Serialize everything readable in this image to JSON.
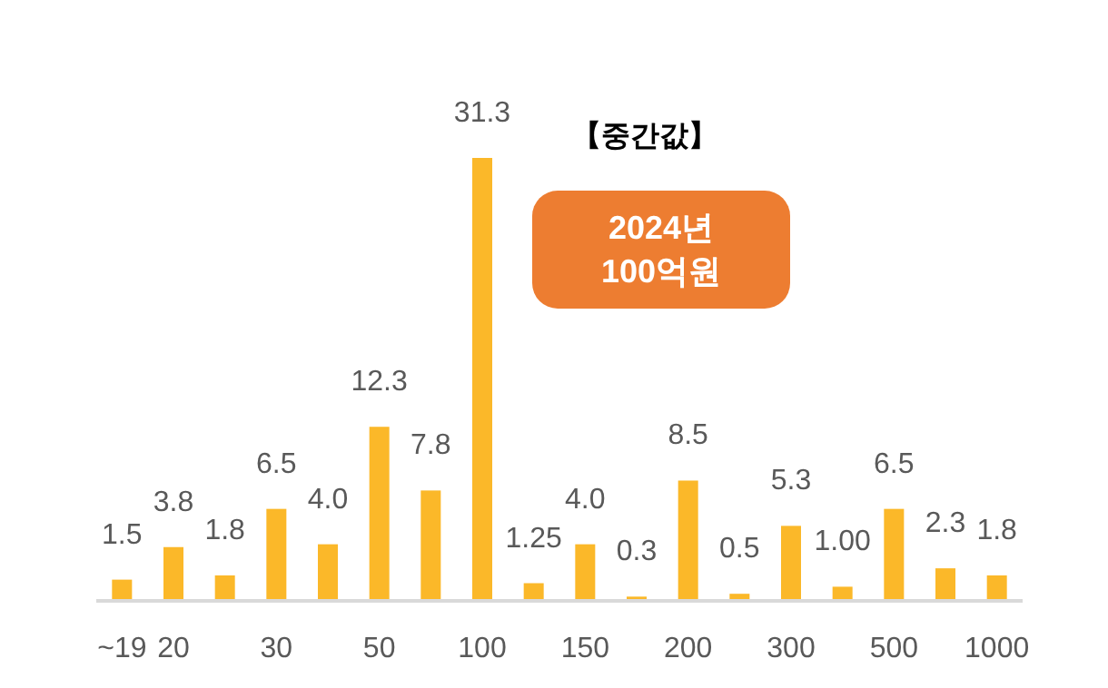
{
  "chart_data": {
    "type": "bar",
    "categories": [
      "~19",
      "20",
      null,
      "30",
      null,
      "50",
      null,
      "100",
      null,
      "150",
      null,
      "200",
      null,
      "300",
      null,
      "500",
      null,
      "1000"
    ],
    "values": [
      1.5,
      3.8,
      1.8,
      6.5,
      4.0,
      12.3,
      7.8,
      31.3,
      1.25,
      4.0,
      0.3,
      8.5,
      0.5,
      5.3,
      1.0,
      6.5,
      2.3,
      1.8
    ],
    "value_labels": [
      "1.5",
      "3.8",
      "1.8",
      "6.5",
      "4.0",
      "12.3",
      "7.8",
      "31.3",
      "1.25",
      "4.0",
      "0.3",
      "8.5",
      "0.5",
      "5.3",
      "1.00",
      "6.5",
      "2.3",
      "1.8"
    ],
    "color": "#fbb829",
    "annotations": [
      "【중간값】",
      "2024년",
      "100억원"
    ]
  }
}
